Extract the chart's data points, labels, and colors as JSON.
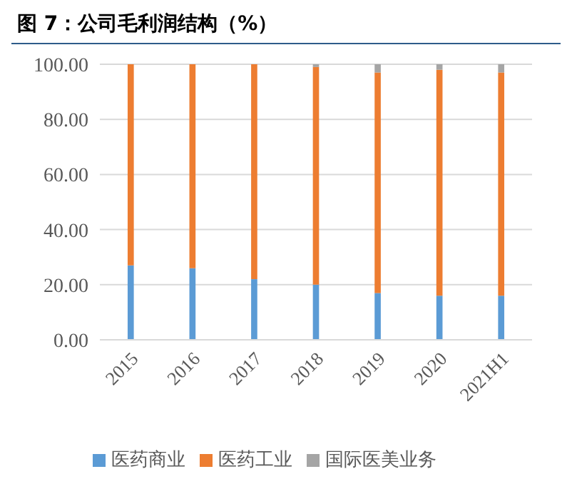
{
  "chart_data": {
    "type": "bar",
    "title": "图 7：公司毛利润结构（%）",
    "categories": [
      "2015",
      "2016",
      "2017",
      "2018",
      "2019",
      "2020",
      "2021H1"
    ],
    "stacked": true,
    "series": [
      {
        "name": "医药商业",
        "color": "#5b9bd5",
        "values": [
          27,
          26,
          22,
          20,
          17,
          16,
          16
        ]
      },
      {
        "name": "医药工业",
        "color": "#ed7d31",
        "values": [
          73,
          74,
          78,
          79,
          80,
          82,
          81
        ]
      },
      {
        "name": "国际医美业务",
        "color": "#a5a5a5",
        "values": [
          0,
          0,
          0,
          1,
          3,
          2,
          3
        ]
      }
    ],
    "ylim": [
      0,
      100
    ],
    "yticks": [
      {
        "value": 0,
        "label": "0.00"
      },
      {
        "value": 20,
        "label": "20.00"
      },
      {
        "value": 40,
        "label": "40.00"
      },
      {
        "value": 60,
        "label": "60.00"
      },
      {
        "value": 80,
        "label": "80.00"
      },
      {
        "value": 100,
        "label": "100.00"
      }
    ],
    "grid": "y",
    "legend": "bottom"
  }
}
